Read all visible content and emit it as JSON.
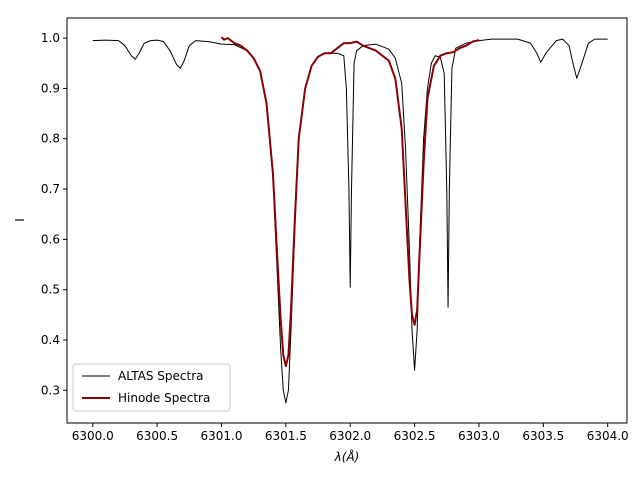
{
  "chart_data": {
    "type": "line",
    "xlabel": "λ(Å)",
    "ylabel": "I",
    "xlim": [
      6299.8,
      6304.15
    ],
    "ylim": [
      0.235,
      1.04
    ],
    "xticks": [
      6300.0,
      6300.5,
      6301.0,
      6301.5,
      6302.0,
      6302.5,
      6303.0,
      6303.5,
      6304.0
    ],
    "xtick_labels": [
      "6300.0",
      "6300.5",
      "6301.0",
      "6301.5",
      "6302.0",
      "6302.5",
      "6303.0",
      "6303.5",
      "6304.0"
    ],
    "yticks": [
      0.3,
      0.4,
      0.5,
      0.6,
      0.7,
      0.8,
      0.9,
      1.0
    ],
    "ytick_labels": [
      "0.3",
      "0.4",
      "0.5",
      "0.6",
      "0.7",
      "0.8",
      "0.9",
      "1.0"
    ],
    "grid": false,
    "legend_position": "lower-left",
    "series": [
      {
        "name": "ALTAS Spectra",
        "color": "#000000",
        "x": [
          6300.0,
          6300.1,
          6300.2,
          6300.25,
          6300.3,
          6300.33,
          6300.36,
          6300.4,
          6300.45,
          6300.5,
          6300.55,
          6300.6,
          6300.65,
          6300.68,
          6300.71,
          6300.75,
          6300.8,
          6300.9,
          6301.0,
          6301.1,
          6301.2,
          6301.25,
          6301.3,
          6301.35,
          6301.4,
          6301.43,
          6301.46,
          6301.48,
          6301.5,
          6301.52,
          6301.54,
          6301.57,
          6301.6,
          6301.65,
          6301.7,
          6301.75,
          6301.8,
          6301.85,
          6301.9,
          6301.95,
          6301.97,
          6301.99,
          6302.0,
          6302.01,
          6302.03,
          6302.05,
          6302.1,
          6302.2,
          6302.3,
          6302.35,
          6302.4,
          6302.43,
          6302.46,
          6302.48,
          6302.5,
          6302.52,
          6302.54,
          6302.57,
          6302.6,
          6302.63,
          6302.66,
          6302.7,
          6302.73,
          6302.75,
          6302.76,
          6302.77,
          6302.79,
          6302.82,
          6302.9,
          6303.0,
          6303.1,
          6303.2,
          6303.3,
          6303.4,
          6303.45,
          6303.48,
          6303.52,
          6303.6,
          6303.65,
          6303.7,
          6303.73,
          6303.76,
          6303.8,
          6303.85,
          6303.9,
          6304.0
        ],
        "y": [
          0.995,
          0.996,
          0.995,
          0.985,
          0.965,
          0.958,
          0.97,
          0.99,
          0.995,
          0.996,
          0.993,
          0.975,
          0.948,
          0.94,
          0.955,
          0.985,
          0.995,
          0.993,
          0.988,
          0.987,
          0.975,
          0.96,
          0.935,
          0.87,
          0.72,
          0.55,
          0.38,
          0.3,
          0.275,
          0.3,
          0.42,
          0.62,
          0.8,
          0.9,
          0.945,
          0.963,
          0.97,
          0.97,
          0.97,
          0.965,
          0.9,
          0.7,
          0.505,
          0.7,
          0.95,
          0.975,
          0.985,
          0.988,
          0.978,
          0.96,
          0.91,
          0.78,
          0.58,
          0.42,
          0.34,
          0.42,
          0.6,
          0.8,
          0.9,
          0.95,
          0.965,
          0.962,
          0.93,
          0.7,
          0.465,
          0.7,
          0.94,
          0.98,
          0.99,
          0.995,
          0.998,
          0.998,
          0.998,
          0.99,
          0.97,
          0.952,
          0.97,
          0.995,
          0.998,
          0.985,
          0.95,
          0.92,
          0.95,
          0.99,
          0.998,
          0.998
        ]
      },
      {
        "name": "Hinode Spectra",
        "color": "#8b0000",
        "x": [
          6301.0,
          6301.02,
          6301.05,
          6301.1,
          6301.15,
          6301.2,
          6301.25,
          6301.3,
          6301.35,
          6301.4,
          6301.43,
          6301.46,
          6301.48,
          6301.5,
          6301.52,
          6301.54,
          6301.57,
          6301.6,
          6301.65,
          6301.7,
          6301.75,
          6301.8,
          6301.85,
          6301.9,
          6301.95,
          6302.0,
          6302.05,
          6302.1,
          6302.15,
          6302.2,
          6302.25,
          6302.3,
          6302.35,
          6302.4,
          6302.43,
          6302.46,
          6302.48,
          6302.5,
          6302.52,
          6302.54,
          6302.57,
          6302.6,
          6302.65,
          6302.7,
          6302.75,
          6302.8,
          6302.85,
          6302.9,
          6302.95,
          6303.0
        ],
        "y": [
          1.002,
          0.997,
          1.0,
          0.99,
          0.985,
          0.975,
          0.96,
          0.935,
          0.87,
          0.73,
          0.58,
          0.44,
          0.37,
          0.348,
          0.37,
          0.46,
          0.64,
          0.8,
          0.9,
          0.945,
          0.963,
          0.97,
          0.97,
          0.98,
          0.99,
          0.99,
          0.993,
          0.985,
          0.98,
          0.975,
          0.965,
          0.955,
          0.92,
          0.82,
          0.67,
          0.52,
          0.45,
          0.43,
          0.46,
          0.58,
          0.75,
          0.88,
          0.945,
          0.965,
          0.97,
          0.972,
          0.98,
          0.985,
          0.993,
          0.996
        ]
      }
    ]
  }
}
